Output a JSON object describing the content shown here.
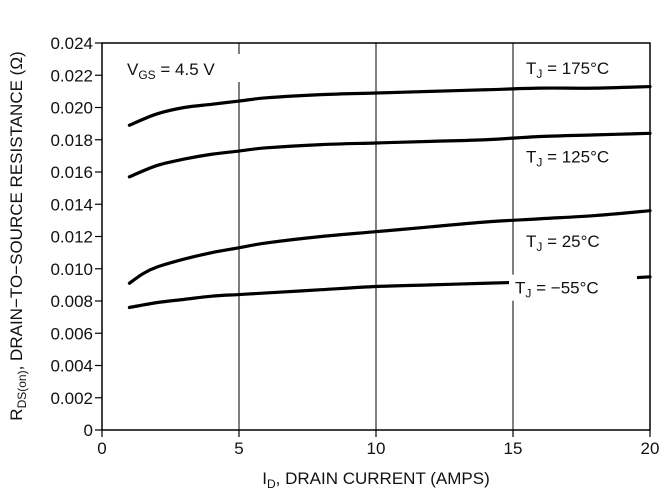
{
  "chart_data": {
    "type": "line",
    "xlabel": {
      "prefix": "I",
      "sub": "D",
      "suffix": ", DRAIN CURRENT (AMPS)"
    },
    "ylabel": {
      "prefix": "R",
      "sub": "DS(on)",
      "suffix": ", DRAIN−TO−SOURCE RESISTANCE (Ω)"
    },
    "xlim": [
      0,
      20
    ],
    "ylim": [
      0,
      0.024
    ],
    "xticks": [
      0,
      5,
      10,
      15,
      20
    ],
    "xtick_labels": [
      "0",
      "5",
      "10",
      "15",
      "20"
    ],
    "yticks": [
      0,
      0.002,
      0.004,
      0.006,
      0.008,
      0.01,
      0.012,
      0.014,
      0.016,
      0.018,
      0.02,
      0.022,
      0.024
    ],
    "ytick_labels": [
      "0",
      "0.002",
      "0.004",
      "0.006",
      "0.008",
      "0.010",
      "0.012",
      "0.014",
      "0.016",
      "0.018",
      "0.020",
      "0.022",
      "0.024"
    ],
    "grid": {
      "vertical_at_major": true,
      "horizontal": false
    },
    "annotation": {
      "prefix": "V",
      "sub": "GS",
      "suffix": " = 4.5 V"
    },
    "series": [
      {
        "name": {
          "prefix": "T",
          "sub": "J",
          "suffix": " = 175°C"
        },
        "x": [
          1,
          2,
          3,
          4,
          5,
          6,
          8,
          10,
          12,
          14,
          16,
          18,
          20
        ],
        "y": [
          0.0189,
          0.0196,
          0.02,
          0.0202,
          0.0204,
          0.0206,
          0.0208,
          0.0209,
          0.021,
          0.0211,
          0.0212,
          0.0212,
          0.0213
        ]
      },
      {
        "name": {
          "prefix": "T",
          "sub": "J",
          "suffix": " = 125°C"
        },
        "x": [
          1,
          2,
          3,
          4,
          5,
          6,
          8,
          10,
          12,
          14,
          16,
          18,
          20
        ],
        "y": [
          0.0157,
          0.0164,
          0.0168,
          0.0171,
          0.0173,
          0.0175,
          0.0177,
          0.0178,
          0.0179,
          0.018,
          0.0182,
          0.0183,
          0.0184
        ]
      },
      {
        "name": {
          "prefix": "T",
          "sub": "J",
          "suffix": " = 25°C"
        },
        "x": [
          1,
          1.5,
          2,
          3,
          4,
          5,
          6,
          8,
          10,
          12,
          14,
          16,
          18,
          20
        ],
        "y": [
          0.0091,
          0.0097,
          0.0101,
          0.0106,
          0.011,
          0.0113,
          0.0116,
          0.012,
          0.0123,
          0.0126,
          0.0129,
          0.0131,
          0.0133,
          0.0136
        ]
      },
      {
        "name": {
          "prefix": "T",
          "sub": "J",
          "suffix": " = −55°C"
        },
        "x": [
          1,
          2,
          3,
          4,
          5,
          6,
          8,
          10,
          12,
          14,
          16,
          18,
          20
        ],
        "y": [
          0.0076,
          0.0079,
          0.0081,
          0.0083,
          0.0084,
          0.0085,
          0.0087,
          0.0089,
          0.009,
          0.0091,
          0.0092,
          0.0093,
          0.0095
        ]
      }
    ]
  }
}
